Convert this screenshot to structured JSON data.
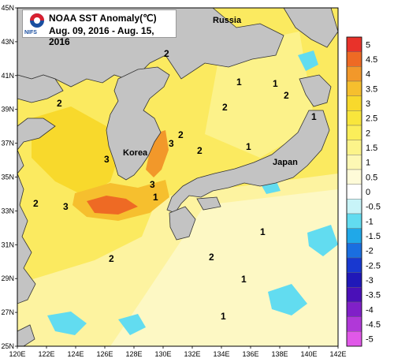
{
  "title": {
    "line1": "NOAA SST Anomaly(℃)",
    "line2": "Aug. 09, 2016 - Aug. 15, 2016",
    "agency": "NIFS"
  },
  "places": {
    "russia": "Russia",
    "korea": "Korea",
    "japan": "Japan"
  },
  "axes": {
    "lon_ticks": [
      "120E",
      "122E",
      "124E",
      "126E",
      "128E",
      "130E",
      "132E",
      "134E",
      "136E",
      "138E",
      "140E",
      "142E"
    ],
    "lat_ticks": [
      "45N",
      "43N",
      "41N",
      "39N",
      "37N",
      "35N",
      "33N",
      "31N",
      "29N",
      "27N",
      "25N"
    ]
  },
  "legend": {
    "labels": [
      "5",
      "4.5",
      "4",
      "3.5",
      "3",
      "2.5",
      "2",
      "1.5",
      "1",
      "0.5",
      "0",
      "-0.5",
      "-1",
      "-1.5",
      "-2",
      "-2.5",
      "-3",
      "-3.5",
      "-4",
      "-4.5",
      "-5"
    ],
    "colors": [
      "#e8322a",
      "#ee6a24",
      "#f2982a",
      "#f6bf2e",
      "#f8d92c",
      "#f9e63c",
      "#fbee5a",
      "#fcf48a",
      "#fdf8b4",
      "#fefbd8",
      "#ffffff",
      "#c8f4f8",
      "#62dcf0",
      "#20a8e8",
      "#1a6ee0",
      "#1838d0",
      "#2018b8",
      "#4a10b8",
      "#8020c8",
      "#b038d8",
      "#e058e8"
    ]
  },
  "contour_labels": [
    "2",
    "2",
    "1",
    "3",
    "3",
    "2",
    "3",
    "3",
    "2",
    "1",
    "2",
    "1",
    "1",
    "2",
    "1",
    "2",
    "2",
    "1",
    "1",
    "1",
    "2"
  ],
  "colors": {
    "land": "#c3c3c3",
    "sea_base": "#fbea60",
    "warm": "#f6bf2e",
    "hot": "#ee6a24",
    "cool": "#fdf8b4",
    "cold": "#62dcf0"
  }
}
